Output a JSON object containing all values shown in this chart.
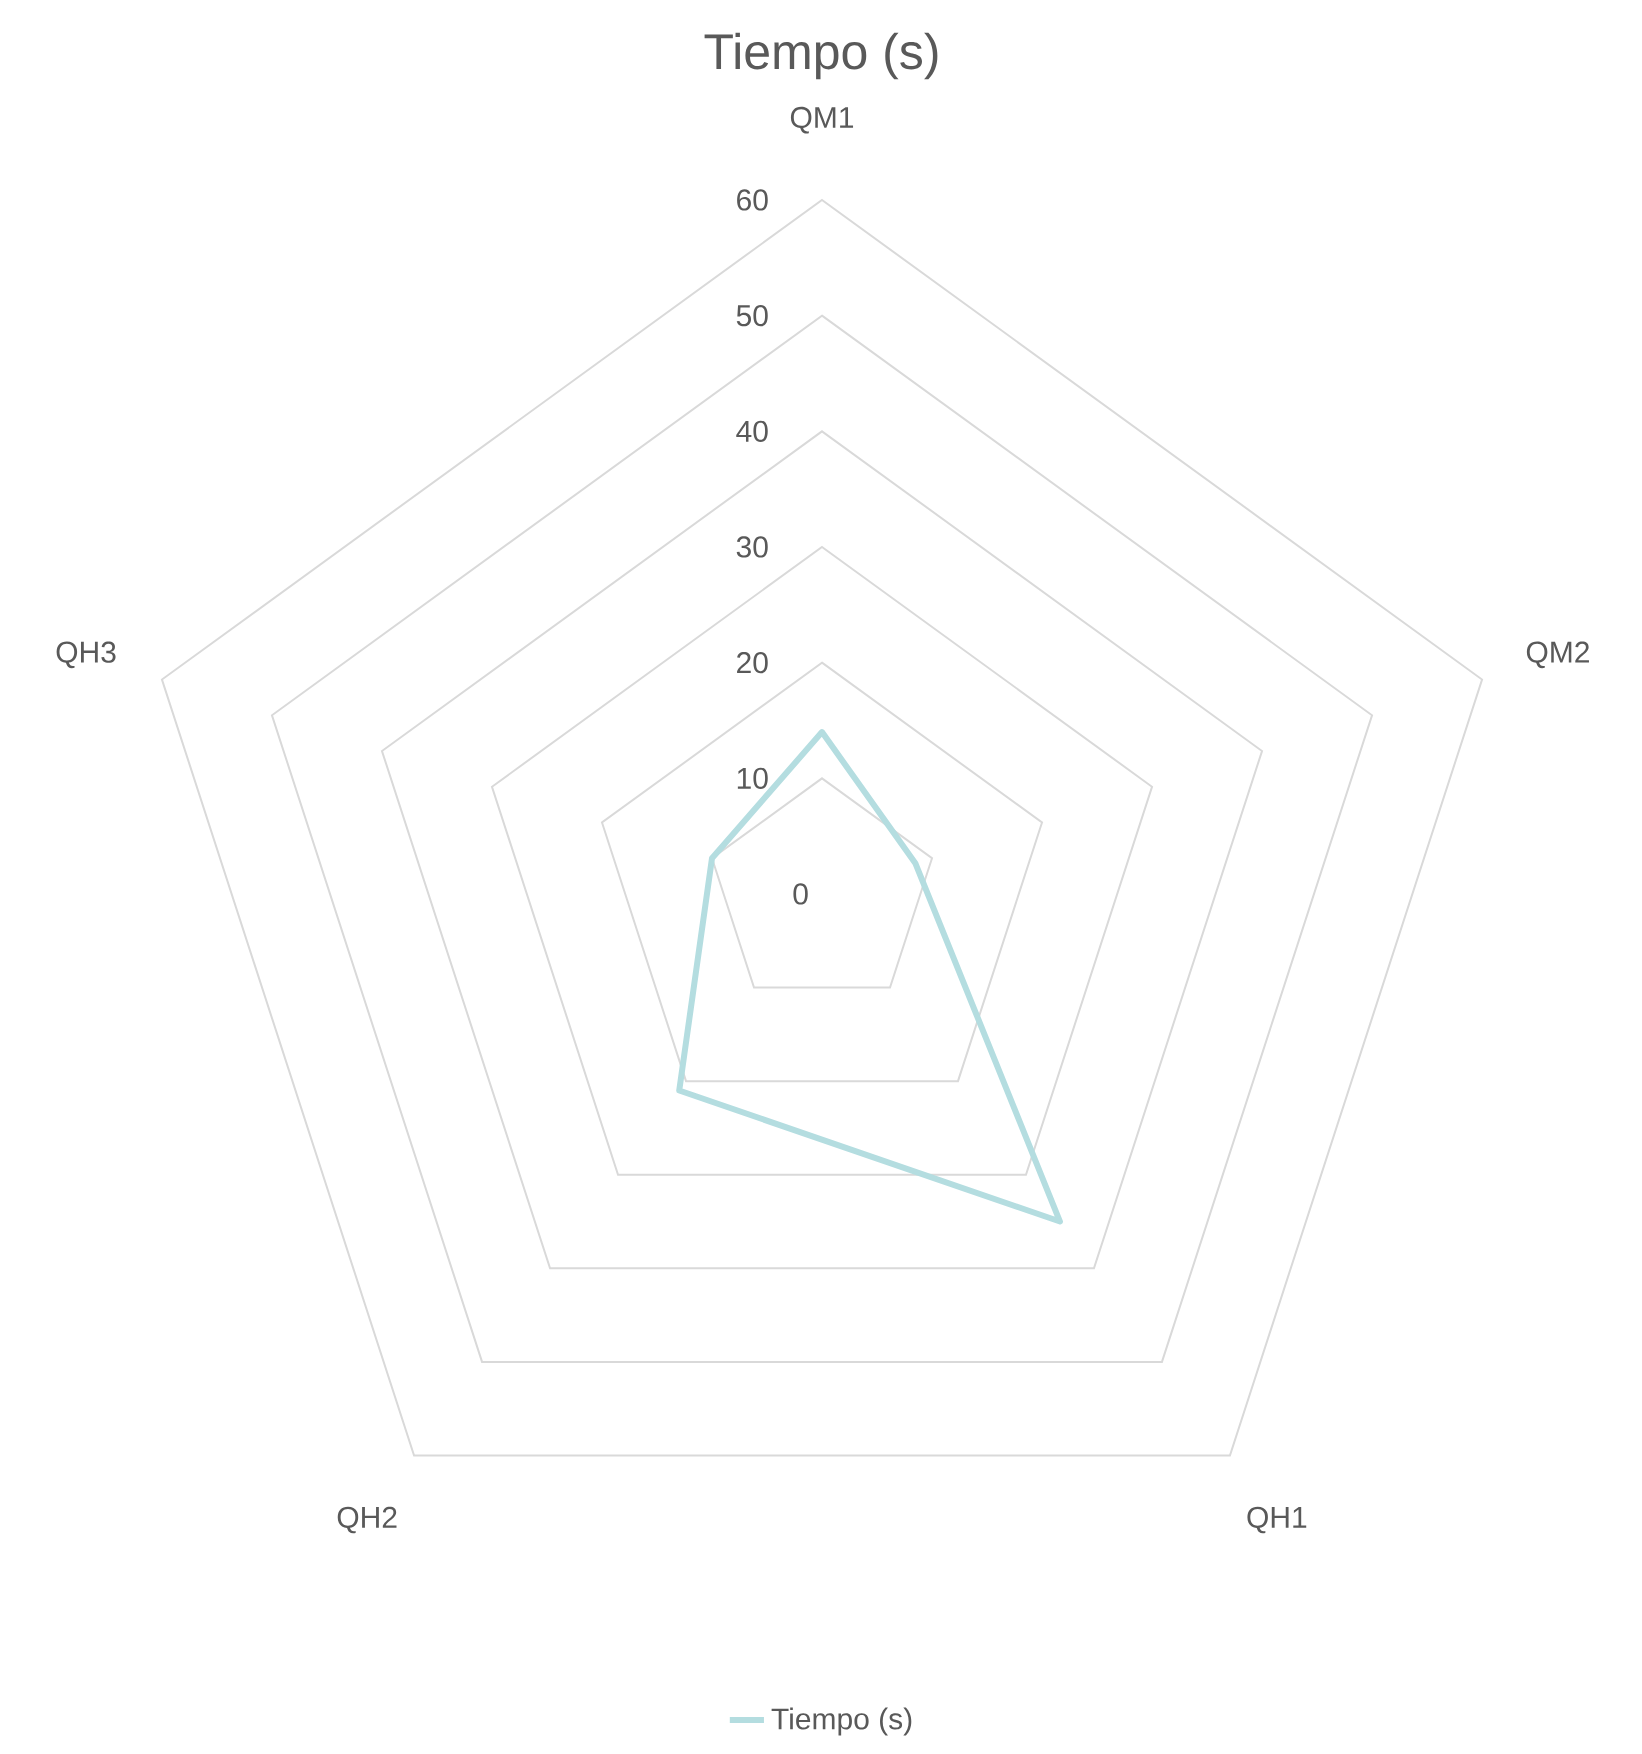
{
  "chart_data": {
    "type": "radar",
    "title": "Tiempo (s)",
    "categories": [
      "QM1",
      "QM2",
      "QH1",
      "QH2",
      "QH3"
    ],
    "series": [
      {
        "name": "Tiempo (s)",
        "color": "#b4dde0",
        "values": [
          14,
          8.5,
          35,
          21,
          10
        ]
      }
    ],
    "ylim": [
      0,
      60
    ],
    "yticks": [
      0,
      10,
      20,
      30,
      40,
      50,
      60
    ],
    "grid": true,
    "legend": "bottom",
    "marker": "none"
  }
}
